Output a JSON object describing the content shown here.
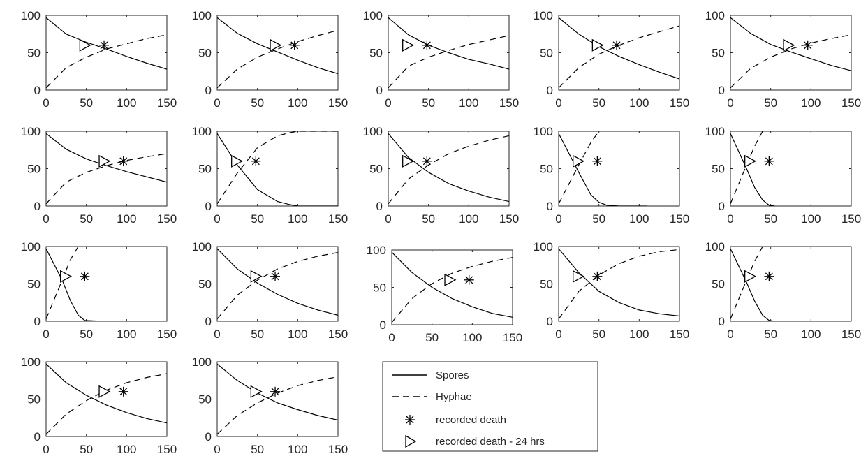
{
  "chart_data": {
    "type": "line",
    "layout": "small-multiples grid (4 rows, 5 columns), 17 panels plus a legend panel",
    "axes": {
      "xlim": [
        0,
        150
      ],
      "ylim": [
        0,
        100
      ],
      "x_ticks": [
        0,
        50,
        100,
        150
      ],
      "y_ticks": [
        0,
        50,
        100
      ],
      "x_tick_labels": [
        "0",
        "50",
        "100",
        "150"
      ],
      "y_tick_labels": [
        "0",
        "50",
        "100"
      ],
      "grid": false
    },
    "series_styles": {
      "spores": {
        "line": "solid",
        "color": "#000000"
      },
      "hyphae": {
        "line": "dashed",
        "color": "#000000"
      },
      "recorded_death": {
        "marker": "asterisk",
        "color": "#000000"
      },
      "recorded_death_24": {
        "marker": "triangle-right (open)",
        "color": "#000000"
      }
    },
    "legend": {
      "placement": "bottom, right of last panel",
      "entries": [
        {
          "key": "spores",
          "label": "Spores"
        },
        {
          "key": "hyphae",
          "label": "Hyphae"
        },
        {
          "key": "recorded_death",
          "label": "recorded death"
        },
        {
          "key": "recorded_death_24",
          "label": "recorded death - 24 hrs"
        }
      ]
    },
    "panels": [
      {
        "id": 1,
        "spores": {
          "x": [
            0,
            25,
            50,
            75,
            100,
            125,
            150
          ],
          "y": [
            97,
            75,
            64,
            55,
            45,
            36,
            28
          ]
        },
        "hyphae": {
          "x": [
            0,
            25,
            50,
            75,
            100,
            125,
            150
          ],
          "y": [
            3,
            30,
            44,
            55,
            62,
            69,
            74
          ]
        },
        "recorded_death": [
          72,
          60
        ],
        "recorded_death_24": [
          48,
          60
        ]
      },
      {
        "id": 2,
        "spores": {
          "x": [
            0,
            25,
            50,
            75,
            100,
            125,
            150
          ],
          "y": [
            97,
            76,
            62,
            51,
            40,
            30,
            22
          ]
        },
        "hyphae": {
          "x": [
            0,
            25,
            50,
            75,
            100,
            125,
            150
          ],
          "y": [
            3,
            28,
            44,
            55,
            65,
            73,
            80
          ]
        },
        "recorded_death": [
          96,
          60
        ],
        "recorded_death_24": [
          72,
          60
        ]
      },
      {
        "id": 3,
        "spores": {
          "x": [
            0,
            25,
            50,
            75,
            100,
            125,
            150
          ],
          "y": [
            97,
            74,
            60,
            50,
            41,
            35,
            28
          ]
        },
        "hyphae": {
          "x": [
            0,
            25,
            50,
            75,
            100,
            125,
            150
          ],
          "y": [
            3,
            32,
            44,
            53,
            61,
            67,
            73
          ]
        },
        "recorded_death": [
          48,
          60
        ],
        "recorded_death_24": [
          24,
          60
        ]
      },
      {
        "id": 4,
        "spores": {
          "x": [
            0,
            25,
            50,
            75,
            100,
            125,
            150
          ],
          "y": [
            97,
            75,
            58,
            45,
            34,
            24,
            15
          ]
        },
        "hyphae": {
          "x": [
            0,
            25,
            50,
            75,
            100,
            125,
            150
          ],
          "y": [
            3,
            30,
            48,
            60,
            70,
            78,
            86
          ]
        },
        "recorded_death": [
          72,
          60
        ],
        "recorded_death_24": [
          48,
          60
        ]
      },
      {
        "id": 5,
        "spores": {
          "x": [
            0,
            25,
            50,
            75,
            100,
            125,
            150
          ],
          "y": [
            97,
            76,
            61,
            51,
            42,
            33,
            26
          ]
        },
        "hyphae": {
          "x": [
            0,
            25,
            50,
            75,
            100,
            125,
            150
          ],
          "y": [
            3,
            29,
            44,
            55,
            63,
            69,
            74
          ]
        },
        "recorded_death": [
          96,
          60
        ],
        "recorded_death_24": [
          72,
          60
        ]
      },
      {
        "id": 6,
        "spores": {
          "x": [
            0,
            25,
            50,
            75,
            100,
            125,
            150
          ],
          "y": [
            97,
            76,
            63,
            54,
            46,
            39,
            32
          ]
        },
        "hyphae": {
          "x": [
            0,
            25,
            50,
            75,
            100,
            125,
            150
          ],
          "y": [
            3,
            32,
            45,
            54,
            61,
            66,
            70
          ]
        },
        "recorded_death": [
          96,
          60
        ],
        "recorded_death_24": [
          72,
          60
        ]
      },
      {
        "id": 7,
        "spores": {
          "x": [
            0,
            25,
            50,
            75,
            90,
            100,
            150
          ],
          "y": [
            97,
            55,
            22,
            6,
            2,
            0,
            0
          ]
        },
        "hyphae": {
          "x": [
            0,
            25,
            50,
            75,
            90,
            100,
            150
          ],
          "y": [
            3,
            44,
            78,
            94,
            98,
            100,
            100
          ]
        },
        "recorded_death": [
          48,
          60
        ],
        "recorded_death_24": [
          24,
          60
        ]
      },
      {
        "id": 8,
        "spores": {
          "x": [
            0,
            25,
            50,
            75,
            100,
            125,
            150
          ],
          "y": [
            97,
            65,
            45,
            30,
            20,
            12,
            6
          ]
        },
        "hyphae": {
          "x": [
            0,
            25,
            50,
            75,
            100,
            125,
            150
          ],
          "y": [
            3,
            36,
            55,
            70,
            80,
            88,
            94
          ]
        },
        "recorded_death": [
          48,
          60
        ],
        "recorded_death_24": [
          24,
          60
        ]
      },
      {
        "id": 9,
        "spores": {
          "x": [
            0,
            25,
            40,
            50,
            60,
            75,
            110
          ],
          "y": [
            97,
            45,
            15,
            5,
            1,
            0,
            0
          ]
        },
        "hyphae": {
          "x": [
            0,
            25,
            40,
            50
          ],
          "y": [
            3,
            55,
            85,
            100
          ]
        },
        "recorded_death": [
          48,
          60
        ],
        "recorded_death_24": [
          24,
          60
        ]
      },
      {
        "id": 10,
        "spores": {
          "x": [
            0,
            20,
            30,
            40,
            48,
            55
          ],
          "y": [
            97,
            50,
            25,
            8,
            1,
            0
          ]
        },
        "hyphae": {
          "x": [
            0,
            20,
            30,
            40
          ],
          "y": [
            3,
            55,
            80,
            100
          ]
        },
        "recorded_death": [
          48,
          60
        ],
        "recorded_death_24": [
          24,
          60
        ]
      },
      {
        "id": 11,
        "spores": {
          "x": [
            0,
            20,
            30,
            40,
            48,
            70
          ],
          "y": [
            97,
            55,
            28,
            8,
            1,
            0
          ]
        },
        "hyphae": {
          "x": [
            0,
            20,
            30,
            40
          ],
          "y": [
            3,
            55,
            82,
            100
          ]
        },
        "recorded_death": [
          48,
          60
        ],
        "recorded_death_24": [
          24,
          60
        ]
      },
      {
        "id": 12,
        "spores": {
          "x": [
            0,
            25,
            50,
            75,
            100,
            125,
            150
          ],
          "y": [
            97,
            70,
            51,
            36,
            24,
            15,
            8
          ]
        },
        "hyphae": {
          "x": [
            0,
            25,
            50,
            75,
            100,
            125,
            150
          ],
          "y": [
            3,
            35,
            55,
            70,
            80,
            87,
            92
          ]
        },
        "recorded_death": [
          72,
          60
        ],
        "recorded_death_24": [
          48,
          60
        ]
      },
      {
        "id": 13,
        "spores": {
          "x": [
            0,
            25,
            50,
            75,
            100,
            125,
            150
          ],
          "y": [
            97,
            70,
            50,
            35,
            24,
            15,
            10
          ]
        },
        "hyphae": {
          "x": [
            0,
            25,
            50,
            75,
            100,
            125,
            150
          ],
          "y": [
            3,
            35,
            55,
            69,
            78,
            85,
            90
          ]
        },
        "recorded_death": [
          96,
          60
        ],
        "recorded_death_24": [
          72,
          60
        ]
      },
      {
        "id": 14,
        "spores": {
          "x": [
            0,
            25,
            50,
            75,
            100,
            125,
            150
          ],
          "y": [
            97,
            65,
            40,
            25,
            15,
            10,
            7
          ]
        },
        "hyphae": {
          "x": [
            0,
            25,
            50,
            75,
            100,
            125,
            150
          ],
          "y": [
            3,
            40,
            62,
            77,
            87,
            93,
            96
          ]
        },
        "recorded_death": [
          48,
          60
        ],
        "recorded_death_24": [
          24,
          60
        ]
      },
      {
        "id": 15,
        "spores": {
          "x": [
            0,
            20,
            30,
            40,
            48,
            55
          ],
          "y": [
            97,
            52,
            27,
            8,
            1,
            0
          ]
        },
        "hyphae": {
          "x": [
            0,
            20,
            30,
            40
          ],
          "y": [
            3,
            55,
            80,
            100
          ]
        },
        "recorded_death": [
          48,
          60
        ],
        "recorded_death_24": [
          24,
          60
        ]
      },
      {
        "id": 16,
        "spores": {
          "x": [
            0,
            25,
            50,
            75,
            100,
            125,
            150
          ],
          "y": [
            97,
            72,
            55,
            42,
            32,
            24,
            18
          ]
        },
        "hyphae": {
          "x": [
            0,
            25,
            50,
            75,
            100,
            125,
            150
          ],
          "y": [
            3,
            30,
            48,
            62,
            72,
            79,
            84
          ]
        },
        "recorded_death": [
          96,
          60
        ],
        "recorded_death_24": [
          72,
          60
        ]
      },
      {
        "id": 17,
        "spores": {
          "x": [
            0,
            25,
            50,
            75,
            100,
            125,
            150
          ],
          "y": [
            97,
            75,
            58,
            45,
            36,
            28,
            22
          ]
        },
        "hyphae": {
          "x": [
            0,
            25,
            50,
            75,
            100,
            125,
            150
          ],
          "y": [
            3,
            28,
            45,
            58,
            68,
            75,
            80
          ]
        },
        "recorded_death": [
          72,
          60
        ],
        "recorded_death_24": [
          48,
          60
        ]
      }
    ]
  }
}
